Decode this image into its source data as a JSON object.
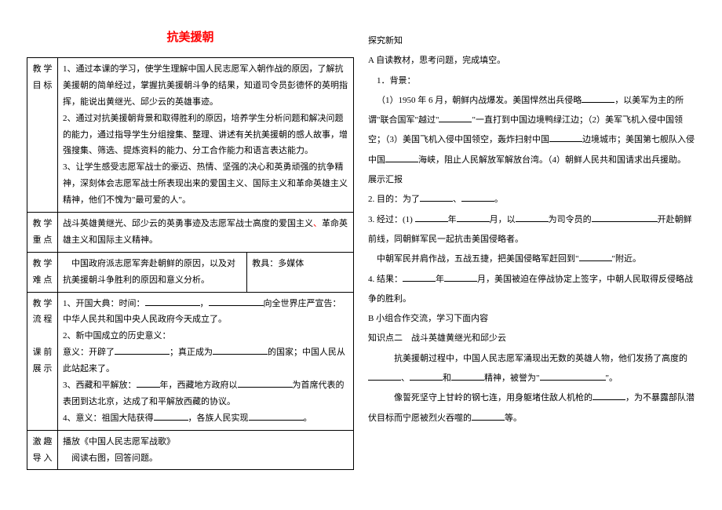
{
  "title": "抗美援朝",
  "left": {
    "rows": [
      {
        "label": "教 学\n目 标",
        "body": "1、通过本课的学习，使学生理解中国人民志愿军入朝作战的原因，了解抗美援朝的简单经过，掌握抗美援朝斗争的结果，知道司令员彭德怀的英明指挥，能说出黄继光、邱少云的英雄事迹。\n2、通过对抗美援朝背景和取得胜利的原因，培养学生分析问题和解决问题的能力，通过指导学生分组搜集、整理、讲述有关抗美援朝的感人故事，增强搜集、筛选、提炼资料的能力、分工合作能力和语言表达能力。\n3、让学生感受志愿军战士的豪迈、热情、坚强的决心和英勇顽强的抗争精神，深刻体会志愿军战士所表现出来的爱国主义、国际主义和革命英雄主义精神，他们不愧为\"最可爱的人\"。"
      },
      {
        "label": "教 学\n重 点",
        "body_html": "战斗英雄黄继光、邱少云的英勇事迹及志愿军战士高度的爱国主义<span class=\"red\">、</span>革命英雄主义和国际主义精神。"
      },
      {
        "label": "教 学\n难 点",
        "body_left": "　中国政府派志愿军奔赴朝鲜的原因，以及对抗美援朝斗争胜利的原因和意义分析。",
        "body_right": "教具：多媒体"
      },
      {
        "label": "教 学\n流 程\n\n课 前\n展 示",
        "body_html": "1、开国大典：时间：<span class=\"blank lg\"></span>，<span class=\"blank lg\"></span>向全世界庄严宣告：中华人民共和国中央人民政府今天成立了。<br>2、新中国成立的历史意义：<br>意义：开辟了<span class=\"blank lg\"></span>；真正成为<span class=\"blank lg\"></span>的国家；中国人民从此站起来了。<br>3、西藏和平解放：<span class=\"blank sm\"></span>年，西藏地方政府以<span class=\"blank lg\"></span>为首席代表的表团到达北京，达成了和平解放西藏的协议。<br>4、意义：祖国大陆获得<span class=\"blank\"></span>，各族人民实现<span class=\"blank lg\"></span>。"
      },
      {
        "label": "激 趣\n导 入",
        "body_html": "播放《中国人民志愿军战歌》<br>　阅读右图，回答问题。"
      }
    ]
  },
  "right": {
    "heading1": "探究新知",
    "a_title": "A 自读教材，思考问题，完成填空。",
    "bg_title": "1．背景：",
    "bg_body": "（1）1950 年 6 月，朝鲜内战爆发。美国悍然出兵侵略______，以美军为主的所谓\"联合国军\"越过\"______\"一直打到中国边境鸭绿江边；（2）美军飞机入侵中国领空；（3）美国飞机入侵中国领空，轰炸扫射中国______边境城市；美国第七舰队入侵中国______海峡，阻止人民解放军解放台湾。（4）朝鲜人民共和国请求出兵援助。",
    "show": "展示汇报",
    "p2": "2. 目的：为了______、______。",
    "p3": "3. 经过：(1) ______年______月，以______为司令员的____________开赴朝鲜前线，同朝鲜军民一起抗击美国侵略者。",
    "p3b": "中朝军民并肩作战，五战五捷，把美国侵略军赶回到\"______\"附近。",
    "p4": "4. 结果：______年______月，美国被迫在停战协定上签字，中朝人民取得反侵略战争的胜利。",
    "b_title": "B 小组合作交流，学习下面内容",
    "k2": "知识点二　战斗英雄黄继光和邱少云",
    "k2_body1": "抗美援朝过程中，中国人民志愿军涌现出无数的英雄人物，他们发扬了高度的______、______和______精神，被誉为\"____________\"。",
    "k2_body2": "像誓死坚守上甘岭的钢七连，用身躯堵住敌人机枪的______，为不暴露部队潜伏目标而宁愿被烈火吞噬的______等。"
  }
}
